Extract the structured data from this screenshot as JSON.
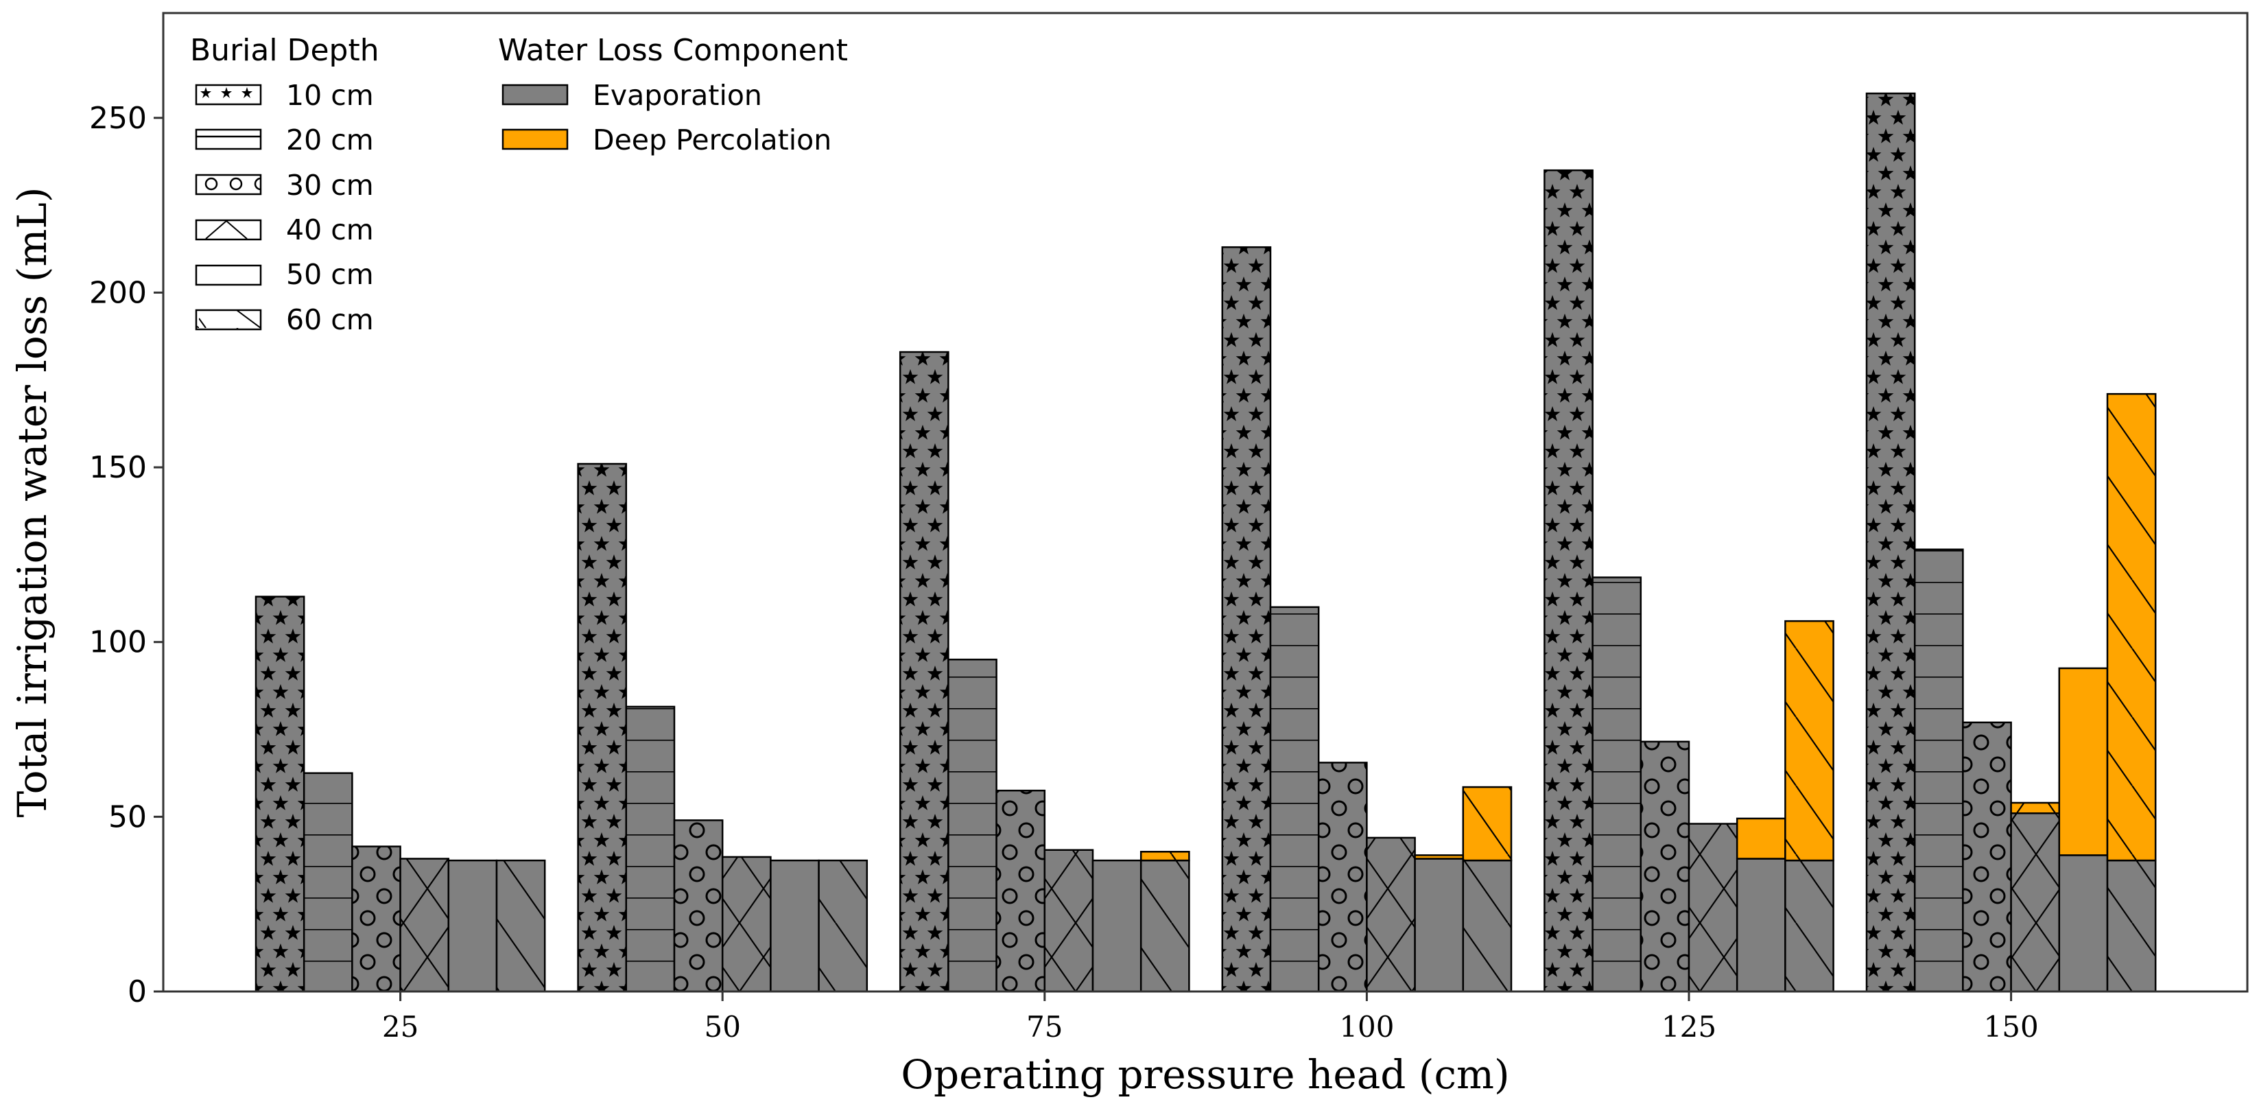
{
  "chart_data": {
    "type": "bar",
    "subtype": "stacked-grouped",
    "xlabel": "Operating pressure head (cm)",
    "ylabel": "Total irrigation water loss (mL)",
    "categories": [
      "25",
      "50",
      "75",
      "100",
      "125",
      "150"
    ],
    "ylim": [
      0,
      280
    ],
    "yticks": [
      0,
      50,
      100,
      150,
      200,
      250
    ],
    "colors": {
      "evaporation": "#808080",
      "deep_percolation": "#FFA500",
      "edge": "#000000",
      "frame": "#333333"
    },
    "burial_depths": [
      {
        "label": "10 cm",
        "hatch": "stars"
      },
      {
        "label": "20 cm",
        "hatch": "horizontal"
      },
      {
        "label": "30 cm",
        "hatch": "circles"
      },
      {
        "label": "40 cm",
        "hatch": "crosshatch"
      },
      {
        "label": "50 cm",
        "hatch": "none"
      },
      {
        "label": "60 cm",
        "hatch": "backslash"
      }
    ],
    "series": [
      {
        "name": "Evaporation",
        "values": [
          [
            113,
            62.5,
            41.5,
            38,
            37.5,
            37.5
          ],
          [
            151,
            81.5,
            49,
            38.5,
            37.5,
            37.5
          ],
          [
            183,
            95,
            57.5,
            40.5,
            37.5,
            37.5
          ],
          [
            213,
            110,
            65.5,
            44,
            38,
            37.5
          ],
          [
            235,
            118.5,
            71.5,
            48,
            38,
            37.5
          ],
          [
            257,
            126.5,
            77,
            51,
            39,
            37.5
          ]
        ]
      },
      {
        "name": "Deep Percolation",
        "values": [
          [
            0,
            0,
            0,
            0,
            0,
            0
          ],
          [
            0,
            0,
            0,
            0,
            0,
            0
          ],
          [
            0,
            0,
            0,
            0,
            0,
            2.5
          ],
          [
            0,
            0,
            0,
            0,
            1,
            21
          ],
          [
            0,
            0,
            0,
            0,
            11.5,
            68.5
          ],
          [
            0,
            0,
            0,
            3,
            53.5,
            133.5
          ]
        ]
      }
    ]
  },
  "legend": {
    "burial_title": "Burial Depth",
    "component_title": "Water Loss Component",
    "components": [
      "Evaporation",
      "Deep Percolation"
    ]
  }
}
